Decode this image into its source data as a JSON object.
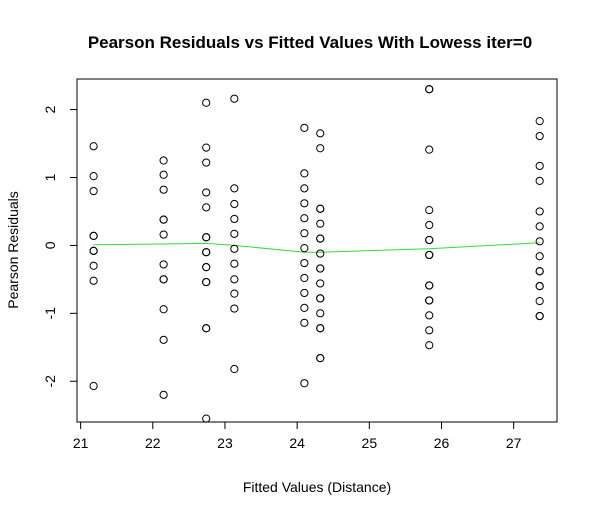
{
  "chart_data": {
    "type": "scatter",
    "title": "Pearson Residuals vs Fitted Values With Lowess iter=0",
    "xlabel": "Fitted Values (Distance)",
    "ylabel": "Pearson Residuals",
    "xlim": [
      20.95,
      27.6
    ],
    "ylim": [
      -2.6,
      2.45
    ],
    "xticks": [
      21,
      22,
      23,
      24,
      25,
      26,
      27
    ],
    "yticks": [
      -2,
      -1,
      0,
      1,
      2
    ],
    "grid": false,
    "lowess_color": "#33dd33",
    "points_x": [
      21.18,
      21.18,
      21.18,
      21.18,
      21.18,
      21.18,
      21.18,
      21.18,
      21.18,
      21.18,
      22.15,
      22.15,
      22.15,
      22.15,
      22.15,
      22.15,
      22.15,
      22.15,
      22.15,
      22.15,
      22.15,
      22.15,
      22.74,
      22.74,
      22.74,
      22.74,
      22.74,
      22.74,
      22.74,
      22.74,
      22.74,
      22.74,
      22.74,
      22.74,
      22.74,
      22.74,
      22.74,
      22.74,
      23.13,
      23.13,
      23.13,
      23.13,
      23.13,
      23.13,
      23.13,
      23.13,
      23.13,
      23.13,
      23.13,
      24.1,
      24.1,
      24.1,
      24.1,
      24.1,
      24.1,
      24.1,
      24.1,
      24.1,
      24.1,
      24.1,
      24.1,
      24.1,
      24.32,
      24.32,
      24.32,
      24.32,
      24.32,
      24.32,
      24.32,
      24.32,
      24.32,
      24.32,
      24.32,
      24.32,
      24.32,
      24.32,
      24.32,
      24.32,
      24.32,
      24.32,
      25.83,
      25.83,
      25.83,
      25.83,
      25.83,
      25.83,
      25.83,
      25.83,
      25.83,
      25.83,
      25.83,
      25.83,
      25.83,
      25.83,
      25.83,
      25.83,
      27.36,
      27.36,
      27.36,
      27.36,
      27.36,
      27.36,
      27.36,
      27.36,
      27.36,
      27.36,
      27.36,
      27.36,
      27.36,
      27.36,
      27.36
    ],
    "points_y": [
      1.46,
      1.02,
      0.8,
      0.14,
      0.14,
      -0.08,
      -0.08,
      -0.3,
      -0.52,
      -2.07,
      1.25,
      1.04,
      0.82,
      0.38,
      0.38,
      0.16,
      -0.28,
      -0.5,
      -0.5,
      -0.94,
      -1.39,
      -2.2,
      2.1,
      1.44,
      1.22,
      0.78,
      0.56,
      0.12,
      0.12,
      -0.1,
      -0.1,
      -0.32,
      -0.32,
      -0.54,
      -0.54,
      -1.22,
      -1.22,
      -2.55,
      2.16,
      0.84,
      0.61,
      0.39,
      0.17,
      -0.05,
      -0.27,
      -0.5,
      -0.71,
      -0.93,
      -1.82,
      1.73,
      1.06,
      0.84,
      0.62,
      0.4,
      0.18,
      -0.04,
      -0.26,
      -0.48,
      -0.7,
      -0.92,
      -1.14,
      -2.03,
      1.65,
      1.43,
      0.54,
      0.54,
      0.32,
      0.1,
      0.1,
      -0.12,
      -0.34,
      -0.34,
      -0.56,
      -0.78,
      -0.78,
      -1.0,
      -1.22,
      -1.22,
      -1.66,
      -1.66,
      2.3,
      2.3,
      1.41,
      0.52,
      0.3,
      0.08,
      0.08,
      -0.14,
      -0.14,
      -0.59,
      -0.59,
      -0.81,
      -0.81,
      -1.03,
      -1.25,
      -1.47,
      1.83,
      1.61,
      1.17,
      0.95,
      0.5,
      0.28,
      0.06,
      -0.16,
      -0.38,
      -0.38,
      -0.6,
      -0.6,
      -0.82,
      -1.04,
      -1.04
    ],
    "lowess_x": [
      21.18,
      22.15,
      22.74,
      23.13,
      24.1,
      24.32,
      25.83,
      27.36
    ],
    "lowess_y": [
      0.01,
      0.02,
      0.03,
      0.0,
      -0.1,
      -0.1,
      -0.05,
      0.04
    ]
  }
}
